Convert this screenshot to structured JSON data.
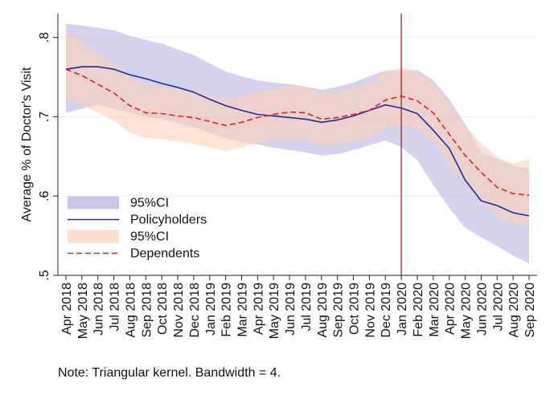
{
  "chart_data": {
    "type": "line",
    "ylabel": "Average % of Doctor's Visit",
    "ylim": [
      0.5,
      0.83
    ],
    "yticks": [
      {
        "value": 0.5,
        "label": ".5"
      },
      {
        "value": 0.6,
        "label": ".6"
      },
      {
        "value": 0.7,
        "label": ".7"
      },
      {
        "value": 0.8,
        "label": ".8"
      }
    ],
    "categories": [
      "Apr 2018",
      "May 2018",
      "Jun 2018",
      "Jul 2018",
      "Aug 2018",
      "Sep 2018",
      "Oct 2018",
      "Nov 2018",
      "Dec 2018",
      "Jan 2019",
      "Feb 2019",
      "Mar 2019",
      "Apr 2019",
      "May 2019",
      "Jun 2019",
      "Jul 2019",
      "Aug 2019",
      "Sep 2019",
      "Oct 2019",
      "Nov 2019",
      "Dec 2019",
      "Jan 2020",
      "Feb 2020",
      "Mar 2020",
      "Apr 2020",
      "May 2020",
      "Jun 2020",
      "Jul 2020",
      "Aug 2020",
      "Sep 2020"
    ],
    "vline_category": "Jan 2020",
    "series": [
      {
        "name": "Policyholders",
        "color": "#1a2ba8",
        "band_color": "#b8b4e0",
        "band_label": "95%CI",
        "values": [
          0.76,
          0.763,
          0.763,
          0.76,
          0.753,
          0.748,
          0.742,
          0.737,
          0.731,
          0.722,
          0.714,
          0.708,
          0.703,
          0.701,
          0.699,
          0.697,
          0.693,
          0.696,
          0.701,
          0.708,
          0.715,
          0.711,
          0.704,
          0.683,
          0.66,
          0.62,
          0.594,
          0.588,
          0.579,
          0.575
        ],
        "lower": [
          0.705,
          0.71,
          0.715,
          0.71,
          0.705,
          0.7,
          0.697,
          0.692,
          0.687,
          0.68,
          0.673,
          0.668,
          0.665,
          0.661,
          0.658,
          0.655,
          0.651,
          0.653,
          0.658,
          0.664,
          0.67,
          0.662,
          0.645,
          0.614,
          0.585,
          0.56,
          0.548,
          0.537,
          0.525,
          0.515
        ],
        "upper": [
          0.817,
          0.815,
          0.812,
          0.809,
          0.802,
          0.797,
          0.792,
          0.785,
          0.778,
          0.767,
          0.757,
          0.751,
          0.746,
          0.743,
          0.741,
          0.738,
          0.734,
          0.738,
          0.743,
          0.751,
          0.758,
          0.758,
          0.759,
          0.746,
          0.722,
          0.69,
          0.655,
          0.647,
          0.638,
          0.635
        ]
      },
      {
        "name": "Dependents",
        "color": "#e0201c",
        "band_color": "#fbd0b8",
        "band_label": "95%CI",
        "values": [
          0.76,
          0.752,
          0.741,
          0.73,
          0.714,
          0.705,
          0.704,
          0.701,
          0.699,
          0.694,
          0.689,
          0.693,
          0.699,
          0.703,
          0.706,
          0.705,
          0.697,
          0.699,
          0.703,
          0.708,
          0.721,
          0.726,
          0.72,
          0.705,
          0.678,
          0.651,
          0.63,
          0.611,
          0.603,
          0.601
        ],
        "lower": [
          0.723,
          0.715,
          0.705,
          0.695,
          0.68,
          0.673,
          0.672,
          0.669,
          0.666,
          0.661,
          0.657,
          0.661,
          0.667,
          0.671,
          0.673,
          0.671,
          0.664,
          0.666,
          0.669,
          0.673,
          0.686,
          0.69,
          0.683,
          0.668,
          0.64,
          0.614,
          0.593,
          0.574,
          0.565,
          0.562
        ],
        "upper": [
          0.808,
          0.795,
          0.779,
          0.766,
          0.75,
          0.74,
          0.738,
          0.735,
          0.733,
          0.728,
          0.722,
          0.726,
          0.731,
          0.735,
          0.739,
          0.738,
          0.73,
          0.732,
          0.737,
          0.743,
          0.757,
          0.762,
          0.757,
          0.743,
          0.716,
          0.688,
          0.667,
          0.649,
          0.641,
          0.647
        ]
      }
    ],
    "legend": [
      {
        "label": "95%CI",
        "kind": "band",
        "series": 0
      },
      {
        "label": "Policyholders",
        "kind": "line",
        "series": 0
      },
      {
        "label": "95%CI",
        "kind": "band",
        "series": 1
      },
      {
        "label": "Dependents",
        "kind": "dashed",
        "series": 1
      }
    ],
    "legend_placement": "bottom-left",
    "grid": true
  },
  "note": "Note: Triangular kernel. Bandwidth = 4."
}
